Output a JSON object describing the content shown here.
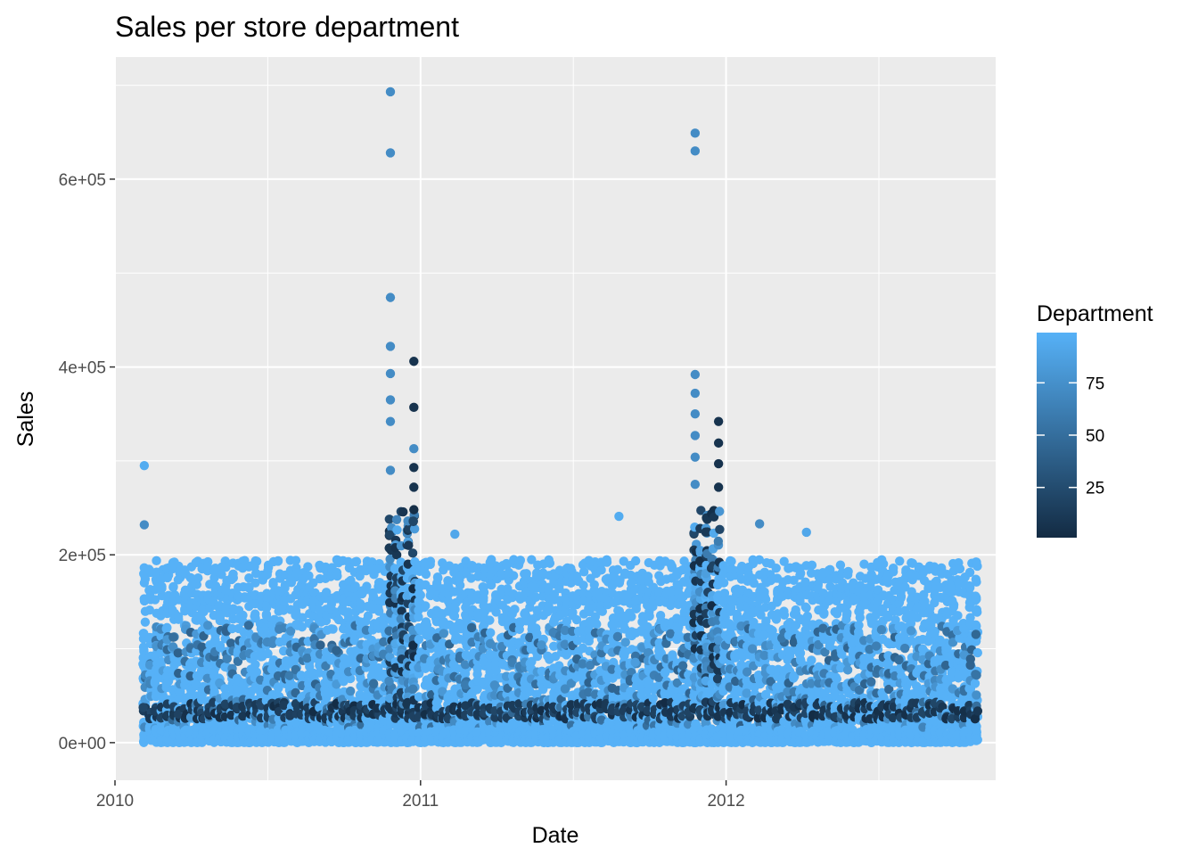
{
  "chart_data": {
    "type": "scatter",
    "title": "Sales per store department",
    "xlabel": "Date",
    "ylabel": "Sales",
    "x_ticks": [
      "2010",
      "2011",
      "2012"
    ],
    "y_ticks": [
      "0e+00",
      "2e+05",
      "4e+05",
      "6e+05"
    ],
    "x_range": [
      "2010-01-01",
      "2012-11-18"
    ],
    "ylim": [
      -40000,
      730000
    ],
    "grid": true,
    "panel_background": "#ebebeb",
    "legend": {
      "title": "Department",
      "position": "right",
      "type": "colorbar",
      "ticks": [
        "25",
        "50",
        "75"
      ],
      "range": [
        1,
        99
      ],
      "low_color": "#132b43",
      "high_color": "#56b1f7"
    },
    "date_range": {
      "start": "2010-02-05",
      "end": "2012-10-26"
    },
    "point_color": "#56b1f7",
    "point_color_dark": "#132b43",
    "series": [
      {
        "values": [
          {
            "x": "2010-02-05",
            "y": 295000,
            "dept": 95
          },
          {
            "x": "2010-02-05",
            "y": 232000,
            "dept": 72
          },
          {
            "x": "2010-11-26",
            "y": 693000,
            "dept": 72
          },
          {
            "x": "2010-11-26",
            "y": 628000,
            "dept": 72
          },
          {
            "x": "2010-11-26",
            "y": 474000,
            "dept": 72
          },
          {
            "x": "2010-11-26",
            "y": 422000,
            "dept": 72
          },
          {
            "x": "2010-11-26",
            "y": 393000,
            "dept": 72
          },
          {
            "x": "2010-11-26",
            "y": 365000,
            "dept": 72
          },
          {
            "x": "2010-11-26",
            "y": 342000,
            "dept": 72
          },
          {
            "x": "2010-11-26",
            "y": 290000,
            "dept": 72
          },
          {
            "x": "2010-12-24",
            "y": 406000,
            "dept": 7
          },
          {
            "x": "2010-12-24",
            "y": 357000,
            "dept": 7
          },
          {
            "x": "2010-12-24",
            "y": 313000,
            "dept": 72
          },
          {
            "x": "2010-12-24",
            "y": 293000,
            "dept": 7
          },
          {
            "x": "2010-12-24",
            "y": 272000,
            "dept": 7
          },
          {
            "x": "2011-02-11",
            "y": 222000,
            "dept": 92
          },
          {
            "x": "2011-08-26",
            "y": 241000,
            "dept": 95
          },
          {
            "x": "2011-11-25",
            "y": 649000,
            "dept": 72
          },
          {
            "x": "2011-11-25",
            "y": 630000,
            "dept": 72
          },
          {
            "x": "2011-11-25",
            "y": 392000,
            "dept": 72
          },
          {
            "x": "2011-11-25",
            "y": 372000,
            "dept": 72
          },
          {
            "x": "2011-11-25",
            "y": 350000,
            "dept": 72
          },
          {
            "x": "2011-11-25",
            "y": 327000,
            "dept": 72
          },
          {
            "x": "2011-11-25",
            "y": 304000,
            "dept": 72
          },
          {
            "x": "2011-11-25",
            "y": 275000,
            "dept": 72
          },
          {
            "x": "2011-12-23",
            "y": 342000,
            "dept": 7
          },
          {
            "x": "2011-12-23",
            "y": 319000,
            "dept": 7
          },
          {
            "x": "2011-12-23",
            "y": 297000,
            "dept": 7
          },
          {
            "x": "2011-12-23",
            "y": 272000,
            "dept": 7
          },
          {
            "x": "2012-02-10",
            "y": 233000,
            "dept": 72
          },
          {
            "x": "2012-04-06",
            "y": 224000,
            "dept": 92
          }
        ]
      }
    ]
  }
}
